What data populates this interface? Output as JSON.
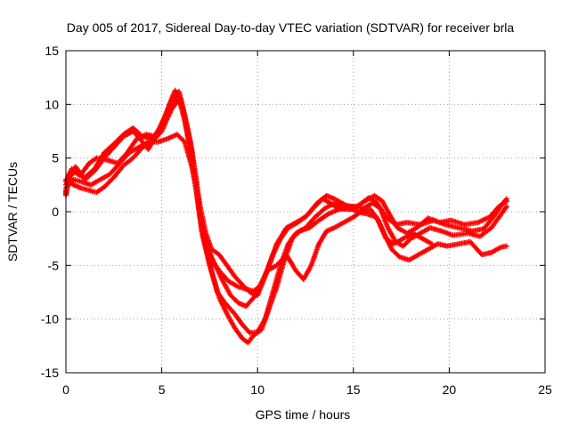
{
  "chart_data": {
    "type": "scatter",
    "title": "Day 005 of 2017, Sidereal Day-to-day VTEC variation (SDTVAR) for receiver brla",
    "xlabel": "GPS time / hours",
    "ylabel": "SDTVAR / TECUs",
    "xlim": [
      0,
      25
    ],
    "ylim": [
      -15,
      15
    ],
    "xticks": [
      0,
      5,
      10,
      15,
      20,
      25
    ],
    "yticks": [
      -15,
      -10,
      -5,
      0,
      5,
      10,
      15
    ],
    "grid": true,
    "marker_color": "#ff0000",
    "marker": "plus",
    "series": [
      {
        "points": [
          [
            0,
            2.5
          ],
          [
            0.3,
            3.5
          ],
          [
            0.6,
            3.8
          ],
          [
            1,
            3.0
          ],
          [
            1.5,
            3.8
          ],
          [
            2,
            5.0
          ],
          [
            2.5,
            6.0
          ],
          [
            3,
            7.0
          ],
          [
            3.5,
            7.5
          ],
          [
            4,
            6.5
          ],
          [
            4.3,
            5.8
          ],
          [
            4.8,
            7.5
          ],
          [
            5.2,
            9.0
          ],
          [
            5.6,
            10.8
          ],
          [
            5.9,
            11.2
          ],
          [
            6.2,
            9.0
          ],
          [
            6.5,
            6.5
          ],
          [
            6.8,
            3.0
          ],
          [
            7.0,
            -0.5
          ],
          [
            7.3,
            -2.5
          ],
          [
            7.6,
            -4.5
          ],
          [
            8,
            -5.5
          ],
          [
            8.5,
            -6.5
          ],
          [
            9,
            -7.0
          ],
          [
            9.4,
            -7.2
          ],
          [
            9.8,
            -7.4
          ],
          [
            10.2,
            -6.8
          ],
          [
            10.6,
            -5.0
          ],
          [
            11,
            -3.0
          ],
          [
            11.5,
            -1.5
          ],
          [
            12,
            -1.0
          ],
          [
            12.5,
            -0.5
          ],
          [
            13,
            0.5
          ],
          [
            13.4,
            1.2
          ],
          [
            13.8,
            0.8
          ],
          [
            14.2,
            0.3
          ],
          [
            14.8,
            0.2
          ],
          [
            15.3,
            0.6
          ],
          [
            15.8,
            1.3
          ],
          [
            16.2,
            0.9
          ],
          [
            16.7,
            -0.5
          ],
          [
            17.2,
            -1.2
          ],
          [
            17.8,
            -1.0
          ],
          [
            18.5,
            -1.2
          ],
          [
            19.2,
            -0.8
          ],
          [
            19.8,
            -1.2
          ],
          [
            20.5,
            -1.5
          ],
          [
            21.2,
            -1.8
          ],
          [
            21.8,
            -1.6
          ],
          [
            22.3,
            -0.5
          ],
          [
            22.8,
            0.8
          ],
          [
            23,
            1.2
          ]
        ]
      },
      {
        "points": [
          [
            0,
            3.0
          ],
          [
            0.4,
            2.5
          ],
          [
            0.8,
            2.2
          ],
          [
            1.2,
            2.0
          ],
          [
            1.6,
            1.8
          ],
          [
            2,
            2.3
          ],
          [
            2.5,
            3.2
          ],
          [
            3,
            4.3
          ],
          [
            3.5,
            5.0
          ],
          [
            4,
            6.0
          ],
          [
            4.5,
            6.5
          ],
          [
            5,
            7.5
          ],
          [
            5.5,
            9.5
          ],
          [
            5.9,
            10.5
          ],
          [
            6.2,
            8.5
          ],
          [
            6.5,
            5.5
          ],
          [
            6.8,
            2.0
          ],
          [
            7.1,
            -2.0
          ],
          [
            7.5,
            -5.0
          ],
          [
            7.9,
            -7.5
          ],
          [
            8.3,
            -8.5
          ],
          [
            8.8,
            -9.5
          ],
          [
            9.2,
            -10.5
          ],
          [
            9.6,
            -11.3
          ],
          [
            10,
            -11.2
          ],
          [
            10.4,
            -10.0
          ],
          [
            10.8,
            -7.5
          ],
          [
            11.2,
            -5.0
          ],
          [
            11.6,
            -3.0
          ],
          [
            12,
            -2.0
          ],
          [
            12.5,
            -1.5
          ],
          [
            13,
            -0.5
          ],
          [
            13.5,
            0.3
          ],
          [
            14,
            0.8
          ],
          [
            14.5,
            0.5
          ],
          [
            15,
            0.5
          ],
          [
            15.5,
            0.3
          ],
          [
            16,
            0.8
          ],
          [
            16.4,
            0.3
          ],
          [
            16.8,
            -1.5
          ],
          [
            17.2,
            -2.8
          ],
          [
            17.6,
            -3.2
          ],
          [
            18,
            -2.5
          ],
          [
            18.5,
            -2.0
          ],
          [
            19,
            -1.5
          ],
          [
            19.6,
            -1.8
          ],
          [
            20.2,
            -2.2
          ],
          [
            21,
            -2.0
          ],
          [
            21.6,
            -2.3
          ],
          [
            22.2,
            -1.5
          ],
          [
            22.8,
            0.0
          ],
          [
            23,
            0.5
          ]
        ]
      },
      {
        "points": [
          [
            0,
            2.8
          ],
          [
            0.3,
            4.0
          ],
          [
            0.6,
            3.5
          ],
          [
            1,
            3.2
          ],
          [
            1.5,
            4.0
          ],
          [
            2,
            5.5
          ],
          [
            2.5,
            6.3
          ],
          [
            3,
            7.2
          ],
          [
            3.5,
            7.8
          ],
          [
            4,
            7.0
          ],
          [
            4.5,
            6.8
          ],
          [
            5,
            8.0
          ],
          [
            5.5,
            10.0
          ],
          [
            5.8,
            11.0
          ],
          [
            6.1,
            9.5
          ],
          [
            6.4,
            7.0
          ],
          [
            6.7,
            4.0
          ],
          [
            7.0,
            0.5
          ],
          [
            7.3,
            -2.0
          ],
          [
            7.6,
            -3.5
          ],
          [
            8,
            -4.0
          ],
          [
            8.4,
            -5.0
          ],
          [
            8.8,
            -6.0
          ],
          [
            9.2,
            -6.8
          ],
          [
            9.6,
            -7.5
          ],
          [
            10.0,
            -7.8
          ],
          [
            10.4,
            -6.0
          ],
          [
            10.8,
            -4.0
          ],
          [
            11.2,
            -2.5
          ],
          [
            11.6,
            -1.5
          ],
          [
            12.1,
            -1.0
          ],
          [
            12.6,
            -0.3
          ],
          [
            13.1,
            0.8
          ],
          [
            13.6,
            1.5
          ],
          [
            14,
            1.2
          ],
          [
            14.6,
            0.6
          ],
          [
            15.1,
            0.4
          ],
          [
            15.6,
            1.0
          ],
          [
            16.1,
            1.5
          ],
          [
            16.5,
            1.0
          ],
          [
            16.9,
            -0.3
          ],
          [
            17.3,
            -1.5
          ],
          [
            17.8,
            -2.0
          ],
          [
            18.3,
            -1.5
          ],
          [
            18.9,
            -0.6
          ],
          [
            19.5,
            -1.0
          ],
          [
            20.1,
            -0.8
          ],
          [
            20.8,
            -1.2
          ],
          [
            21.5,
            -1.0
          ],
          [
            22.1,
            -0.5
          ],
          [
            22.6,
            0.5
          ],
          [
            23,
            1.0
          ]
        ]
      },
      {
        "points": [
          [
            0,
            2.2
          ],
          [
            0.4,
            3.0
          ],
          [
            0.8,
            2.8
          ],
          [
            1.3,
            2.5
          ],
          [
            1.8,
            3.0
          ],
          [
            2.3,
            3.5
          ],
          [
            2.8,
            4.5
          ],
          [
            3.3,
            5.5
          ],
          [
            3.8,
            6.0
          ],
          [
            4.3,
            6.5
          ],
          [
            4.8,
            6.5
          ],
          [
            5.3,
            6.8
          ],
          [
            5.8,
            7.2
          ],
          [
            6.2,
            6.5
          ],
          [
            6.6,
            4.0
          ],
          [
            6.9,
            1.0
          ],
          [
            7.2,
            -2.5
          ],
          [
            7.6,
            -5.5
          ],
          [
            8.0,
            -8.0
          ],
          [
            8.4,
            -9.5
          ],
          [
            8.8,
            -10.8
          ],
          [
            9.2,
            -11.8
          ],
          [
            9.5,
            -12.2
          ],
          [
            9.8,
            -11.5
          ],
          [
            10.2,
            -11.0
          ],
          [
            10.6,
            -9.0
          ],
          [
            11.0,
            -7.0
          ],
          [
            11.4,
            -4.5
          ],
          [
            11.8,
            -2.5
          ],
          [
            12.2,
            -1.8
          ],
          [
            12.7,
            -1.5
          ],
          [
            13.2,
            -0.8
          ],
          [
            13.7,
            -0.2
          ],
          [
            14.2,
            0.2
          ],
          [
            14.7,
            0.4
          ],
          [
            15.2,
            0.0
          ],
          [
            15.7,
            -0.2
          ],
          [
            16.2,
            -0.5
          ],
          [
            16.6,
            -2.0
          ],
          [
            17.0,
            -3.5
          ],
          [
            17.4,
            -4.2
          ],
          [
            17.9,
            -4.5
          ],
          [
            18.4,
            -4.0
          ],
          [
            18.9,
            -3.5
          ],
          [
            19.4,
            -3.0
          ],
          [
            19.9,
            -3.2
          ],
          [
            20.5,
            -3.0
          ],
          [
            21.1,
            -2.8
          ],
          [
            21.7,
            -4.0
          ],
          [
            22.2,
            -3.8
          ],
          [
            22.7,
            -3.3
          ],
          [
            23,
            -3.2
          ]
        ]
      },
      {
        "points": [
          [
            6.8,
            2.0
          ],
          [
            7.1,
            -1.5
          ],
          [
            7.4,
            -3.5
          ],
          [
            7.8,
            -5.0
          ],
          [
            8.2,
            -6.5
          ],
          [
            8.6,
            -7.8
          ],
          [
            9.0,
            -8.5
          ],
          [
            9.4,
            -8.8
          ],
          [
            9.8,
            -8.0
          ],
          [
            10.1,
            -7.0
          ],
          [
            10.5,
            -5.5
          ],
          [
            11.0,
            -5.0
          ],
          [
            11.5,
            -4.0
          ],
          [
            12.0,
            -5.5
          ],
          [
            12.4,
            -6.3
          ],
          [
            12.8,
            -5.0
          ],
          [
            13.2,
            -3.0
          ],
          [
            13.6,
            -1.8
          ],
          [
            14.0,
            -1.5
          ],
          [
            14.5,
            -1.0
          ],
          [
            15.0,
            -0.5
          ],
          [
            15.4,
            0.0
          ],
          [
            15.9,
            0.2
          ],
          [
            16.3,
            -0.8
          ],
          [
            16.7,
            -2.5
          ],
          [
            17.1,
            -3.0
          ],
          [
            17.6,
            -2.5
          ],
          [
            18.1,
            -2.0
          ],
          [
            18.6,
            -2.5
          ],
          [
            19.1,
            -3.0
          ]
        ]
      },
      {
        "points": [
          [
            0,
            2.0
          ],
          [
            0,
            1.5
          ],
          [
            0.2,
            3.5
          ],
          [
            0.5,
            4.2
          ],
          [
            0.8,
            3.5
          ],
          [
            1.2,
            4.5
          ],
          [
            1.6,
            5.0
          ],
          [
            2.2,
            4.8
          ],
          [
            2.7,
            4.5
          ],
          [
            3.2,
            5.5
          ],
          [
            3.7,
            6.8
          ],
          [
            4.2,
            7.2
          ],
          [
            4.7,
            7.0
          ],
          [
            5.1,
            8.5
          ],
          [
            5.4,
            10.0
          ],
          [
            5.7,
            11.3
          ],
          [
            6.0,
            10.5
          ],
          [
            6.3,
            8.0
          ],
          [
            6.6,
            5.5
          ]
        ]
      }
    ]
  }
}
